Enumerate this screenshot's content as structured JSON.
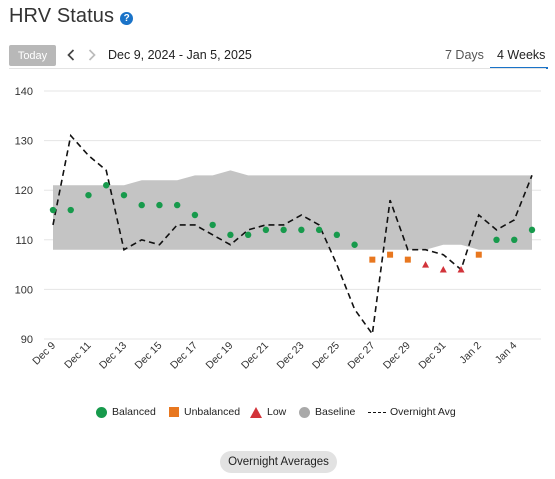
{
  "header": {
    "title": "HRV Status",
    "help_icon": "help-icon"
  },
  "nav": {
    "today_label": "Today",
    "prev_icon": "chevron-left-icon",
    "next_icon": "chevron-right-icon",
    "date_range": "Dec 9, 2024 - Jan 5, 2025",
    "tabs": [
      {
        "label": "7 Days",
        "active": false
      },
      {
        "label": "4 Weeks",
        "active": true
      }
    ]
  },
  "colors": {
    "balanced": "#179a4c",
    "unbalanced": "#e8771f",
    "low": "#d2333a",
    "baseline": "#c4c4c4",
    "overnight_avg": "#111111",
    "accent": "#1a73c8"
  },
  "chart_data": {
    "type": "scatter",
    "ylim": [
      90,
      140
    ],
    "yticks": [
      90,
      100,
      110,
      120,
      130,
      140
    ],
    "xlim": [
      0,
      27
    ],
    "xticks": [
      {
        "x": 0,
        "label": "Dec 9"
      },
      {
        "x": 2,
        "label": "Dec 11"
      },
      {
        "x": 4,
        "label": "Dec 13"
      },
      {
        "x": 6,
        "label": "Dec 15"
      },
      {
        "x": 8,
        "label": "Dec 17"
      },
      {
        "x": 10,
        "label": "Dec 19"
      },
      {
        "x": 12,
        "label": "Dec 21"
      },
      {
        "x": 14,
        "label": "Dec 23"
      },
      {
        "x": 16,
        "label": "Dec 25"
      },
      {
        "x": 18,
        "label": "Dec 27"
      },
      {
        "x": 20,
        "label": "Dec 29"
      },
      {
        "x": 22,
        "label": "Dec 31"
      },
      {
        "x": 24,
        "label": "Jan 2"
      },
      {
        "x": 26,
        "label": "Jan 4"
      }
    ],
    "baseline": {
      "name": "Baseline",
      "x": [
        0,
        1,
        2,
        3,
        4,
        5,
        6,
        7,
        8,
        9,
        10,
        11,
        12,
        13,
        14,
        15,
        16,
        17,
        18,
        19,
        20,
        21,
        22,
        23,
        24,
        25,
        26,
        27
      ],
      "low": [
        108,
        108,
        108,
        108,
        108,
        108,
        108,
        108,
        108,
        108,
        108,
        108,
        108,
        108,
        108,
        108,
        108,
        108,
        108,
        108,
        108,
        108,
        109,
        109,
        108,
        108,
        108,
        108
      ],
      "high": [
        121,
        121,
        121,
        121,
        121,
        122,
        122,
        122,
        123,
        123,
        124,
        123,
        123,
        123,
        123,
        123,
        123,
        123,
        123,
        123,
        123,
        123,
        123,
        123,
        123,
        123,
        123,
        123
      ]
    },
    "series": [
      {
        "name": "Balanced",
        "marker": "circle",
        "points": [
          [
            0,
            116
          ],
          [
            1,
            116
          ],
          [
            2,
            119
          ],
          [
            3,
            121
          ],
          [
            4,
            119
          ],
          [
            5,
            117
          ],
          [
            6,
            117
          ],
          [
            7,
            117
          ],
          [
            8,
            115
          ],
          [
            9,
            113
          ],
          [
            10,
            111
          ],
          [
            11,
            111
          ],
          [
            12,
            112
          ],
          [
            13,
            112
          ],
          [
            14,
            112
          ],
          [
            15,
            112
          ],
          [
            16,
            111
          ],
          [
            17,
            109
          ],
          [
            25,
            110
          ],
          [
            26,
            110
          ],
          [
            27,
            112
          ]
        ]
      },
      {
        "name": "Unbalanced",
        "marker": "square",
        "points": [
          [
            18,
            106
          ],
          [
            19,
            107
          ],
          [
            20,
            106
          ],
          [
            24,
            107
          ]
        ]
      },
      {
        "name": "Low",
        "marker": "triangle",
        "points": [
          [
            21,
            105
          ],
          [
            22,
            104
          ],
          [
            23,
            104
          ]
        ]
      },
      {
        "name": "Overnight Avg",
        "marker": "dashed-line",
        "points": [
          [
            0,
            113
          ],
          [
            1,
            131
          ],
          [
            2,
            127
          ],
          [
            3,
            124
          ],
          [
            4,
            108
          ],
          [
            5,
            110
          ],
          [
            6,
            109
          ],
          [
            7,
            113
          ],
          [
            8,
            113
          ],
          [
            9,
            111
          ],
          [
            10,
            109
          ],
          [
            11,
            112
          ],
          [
            12,
            113
          ],
          [
            13,
            113
          ],
          [
            14,
            115
          ],
          [
            15,
            113
          ],
          [
            16,
            105
          ],
          [
            17,
            96
          ],
          [
            18,
            91
          ],
          [
            19,
            118
          ],
          [
            20,
            108
          ],
          [
            21,
            108
          ],
          [
            22,
            107
          ],
          [
            23,
            104
          ],
          [
            24,
            115
          ],
          [
            25,
            112
          ],
          [
            26,
            114
          ],
          [
            27,
            123
          ]
        ]
      }
    ]
  },
  "legend": [
    {
      "label": "Balanced",
      "marker": "circle",
      "color": "#179a4c"
    },
    {
      "label": "Unbalanced",
      "marker": "square",
      "color": "#e8771f"
    },
    {
      "label": "Low",
      "marker": "triangle",
      "color": "#d2333a"
    },
    {
      "label": "Baseline",
      "marker": "circle",
      "color": "#a9a9a9"
    },
    {
      "label": "Overnight Avg",
      "marker": "dashed-line",
      "color": "#111111"
    }
  ],
  "footer": {
    "button_label": "Overnight Averages"
  }
}
